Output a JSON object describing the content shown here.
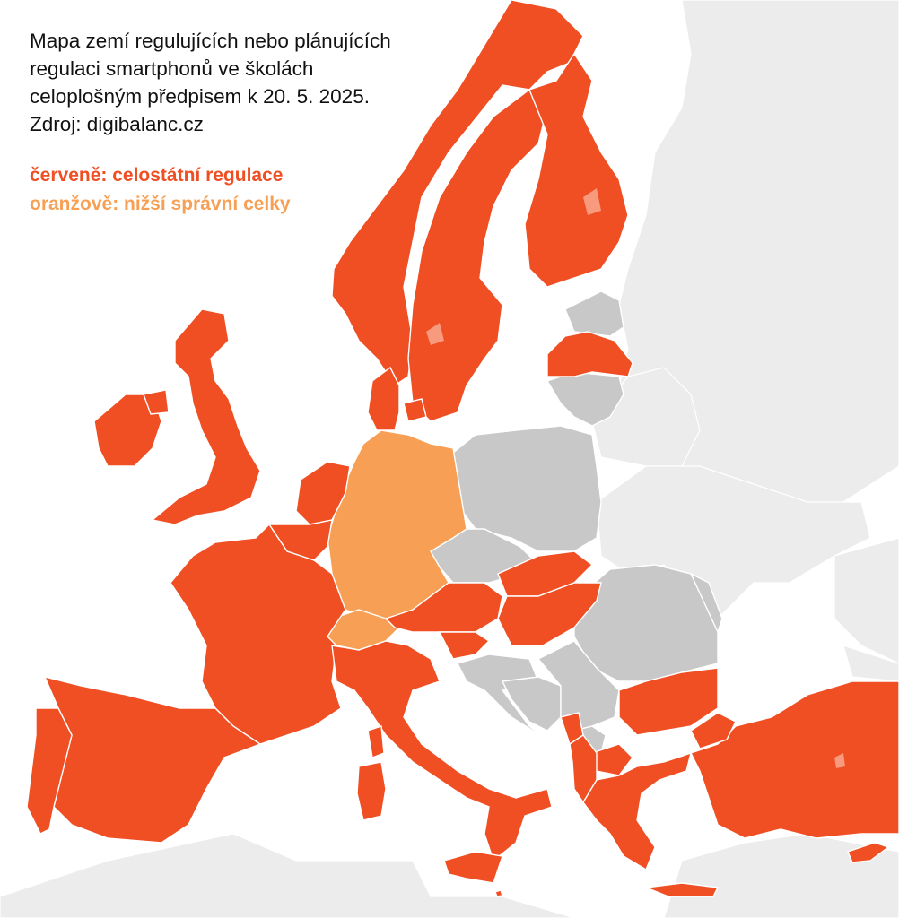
{
  "title_lines": [
    "Mapa zemí regulujících nebo plánujících",
    "regulaci smartphonů ve školách",
    "celoplošným předpisem k 20. 5. 2025.",
    "Zdroj: digibalanc.cz"
  ],
  "legend": [
    {
      "label": "červeně: celostátní regulace",
      "color": "#f04e23",
      "category": "national"
    },
    {
      "label": "oranžově: nižší správní celky",
      "color": "#f7a055",
      "category": "subnational"
    }
  ],
  "colors": {
    "national": "#f04e23",
    "subnational": "#f7a055",
    "no_regulation": "#c8c8c8",
    "outside": "#ececec",
    "sea": "#ffffff"
  },
  "regions": [
    {
      "name": "Norway",
      "category": "national"
    },
    {
      "name": "Sweden",
      "category": "national"
    },
    {
      "name": "Finland",
      "category": "national"
    },
    {
      "name": "Denmark",
      "category": "national"
    },
    {
      "name": "Latvia",
      "category": "national"
    },
    {
      "name": "Ireland",
      "category": "national"
    },
    {
      "name": "United Kingdom",
      "category": "national"
    },
    {
      "name": "Netherlands",
      "category": "national"
    },
    {
      "name": "Belgium",
      "category": "national"
    },
    {
      "name": "Luxembourg",
      "category": "national"
    },
    {
      "name": "France",
      "category": "national"
    },
    {
      "name": "Spain",
      "category": "national"
    },
    {
      "name": "Portugal",
      "category": "national"
    },
    {
      "name": "Italy",
      "category": "national"
    },
    {
      "name": "Austria",
      "category": "national"
    },
    {
      "name": "Slovenia",
      "category": "national"
    },
    {
      "name": "Slovakia",
      "category": "national"
    },
    {
      "name": "Hungary",
      "category": "national"
    },
    {
      "name": "Bulgaria",
      "category": "national"
    },
    {
      "name": "Greece",
      "category": "national"
    },
    {
      "name": "Albania",
      "category": "national"
    },
    {
      "name": "Montenegro",
      "category": "national"
    },
    {
      "name": "North Macedonia",
      "category": "national"
    },
    {
      "name": "Turkey",
      "category": "national"
    },
    {
      "name": "Cyprus",
      "category": "national"
    },
    {
      "name": "Malta",
      "category": "national"
    },
    {
      "name": "Germany",
      "category": "subnational"
    },
    {
      "name": "Switzerland",
      "category": "subnational"
    },
    {
      "name": "Estonia",
      "category": "no_regulation"
    },
    {
      "name": "Lithuania",
      "category": "no_regulation"
    },
    {
      "name": "Poland",
      "category": "no_regulation"
    },
    {
      "name": "Czechia",
      "category": "no_regulation"
    },
    {
      "name": "Romania",
      "category": "no_regulation"
    },
    {
      "name": "Croatia",
      "category": "no_regulation"
    },
    {
      "name": "Bosnia and Herzegovina",
      "category": "no_regulation"
    },
    {
      "name": "Serbia",
      "category": "no_regulation"
    },
    {
      "name": "Kosovo",
      "category": "no_regulation"
    },
    {
      "name": "Moldova",
      "category": "no_regulation"
    }
  ]
}
